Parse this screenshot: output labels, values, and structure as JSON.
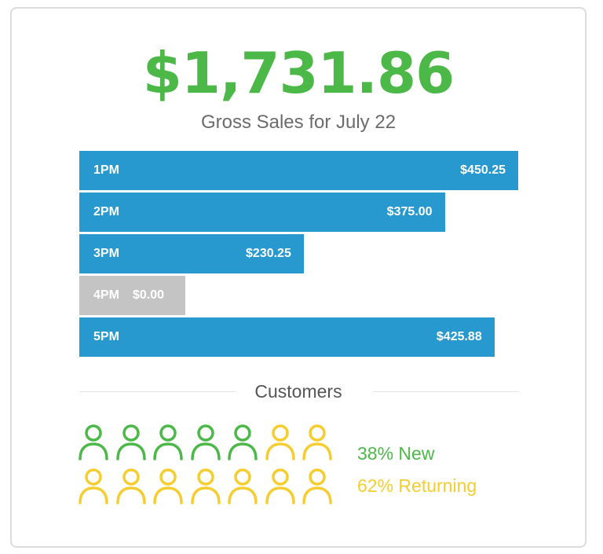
{
  "summary": {
    "total": "$1,731.86",
    "subtitle": "Gross Sales for July 22",
    "customers_title": "Customers"
  },
  "colors": {
    "accent_green": "#4cb848",
    "bar_blue": "#2899cf",
    "bar_zero": "#c4c4c4",
    "returning_yellow": "#f5cd2f"
  },
  "chart_data": {
    "type": "bar",
    "orientation": "horizontal",
    "categories": [
      "1PM",
      "2PM",
      "3PM",
      "4PM",
      "5PM"
    ],
    "values": [
      450.25,
      375.0,
      230.25,
      0.0,
      425.88
    ],
    "value_labels": [
      "$450.25",
      "$375.00",
      "$230.25",
      "$0.00",
      "$425.88"
    ],
    "title": "$1,731.86",
    "subtitle": "Gross Sales for July 22",
    "xlabel": "",
    "ylabel": "",
    "grid": false
  },
  "customers": {
    "new_percent": 38,
    "returning_percent": 62,
    "new_label": "38% New",
    "returning_label": "62% Returning",
    "icon_total": 14,
    "new_icons": 5,
    "returning_icons": 9,
    "icon_name": "person-icon"
  }
}
